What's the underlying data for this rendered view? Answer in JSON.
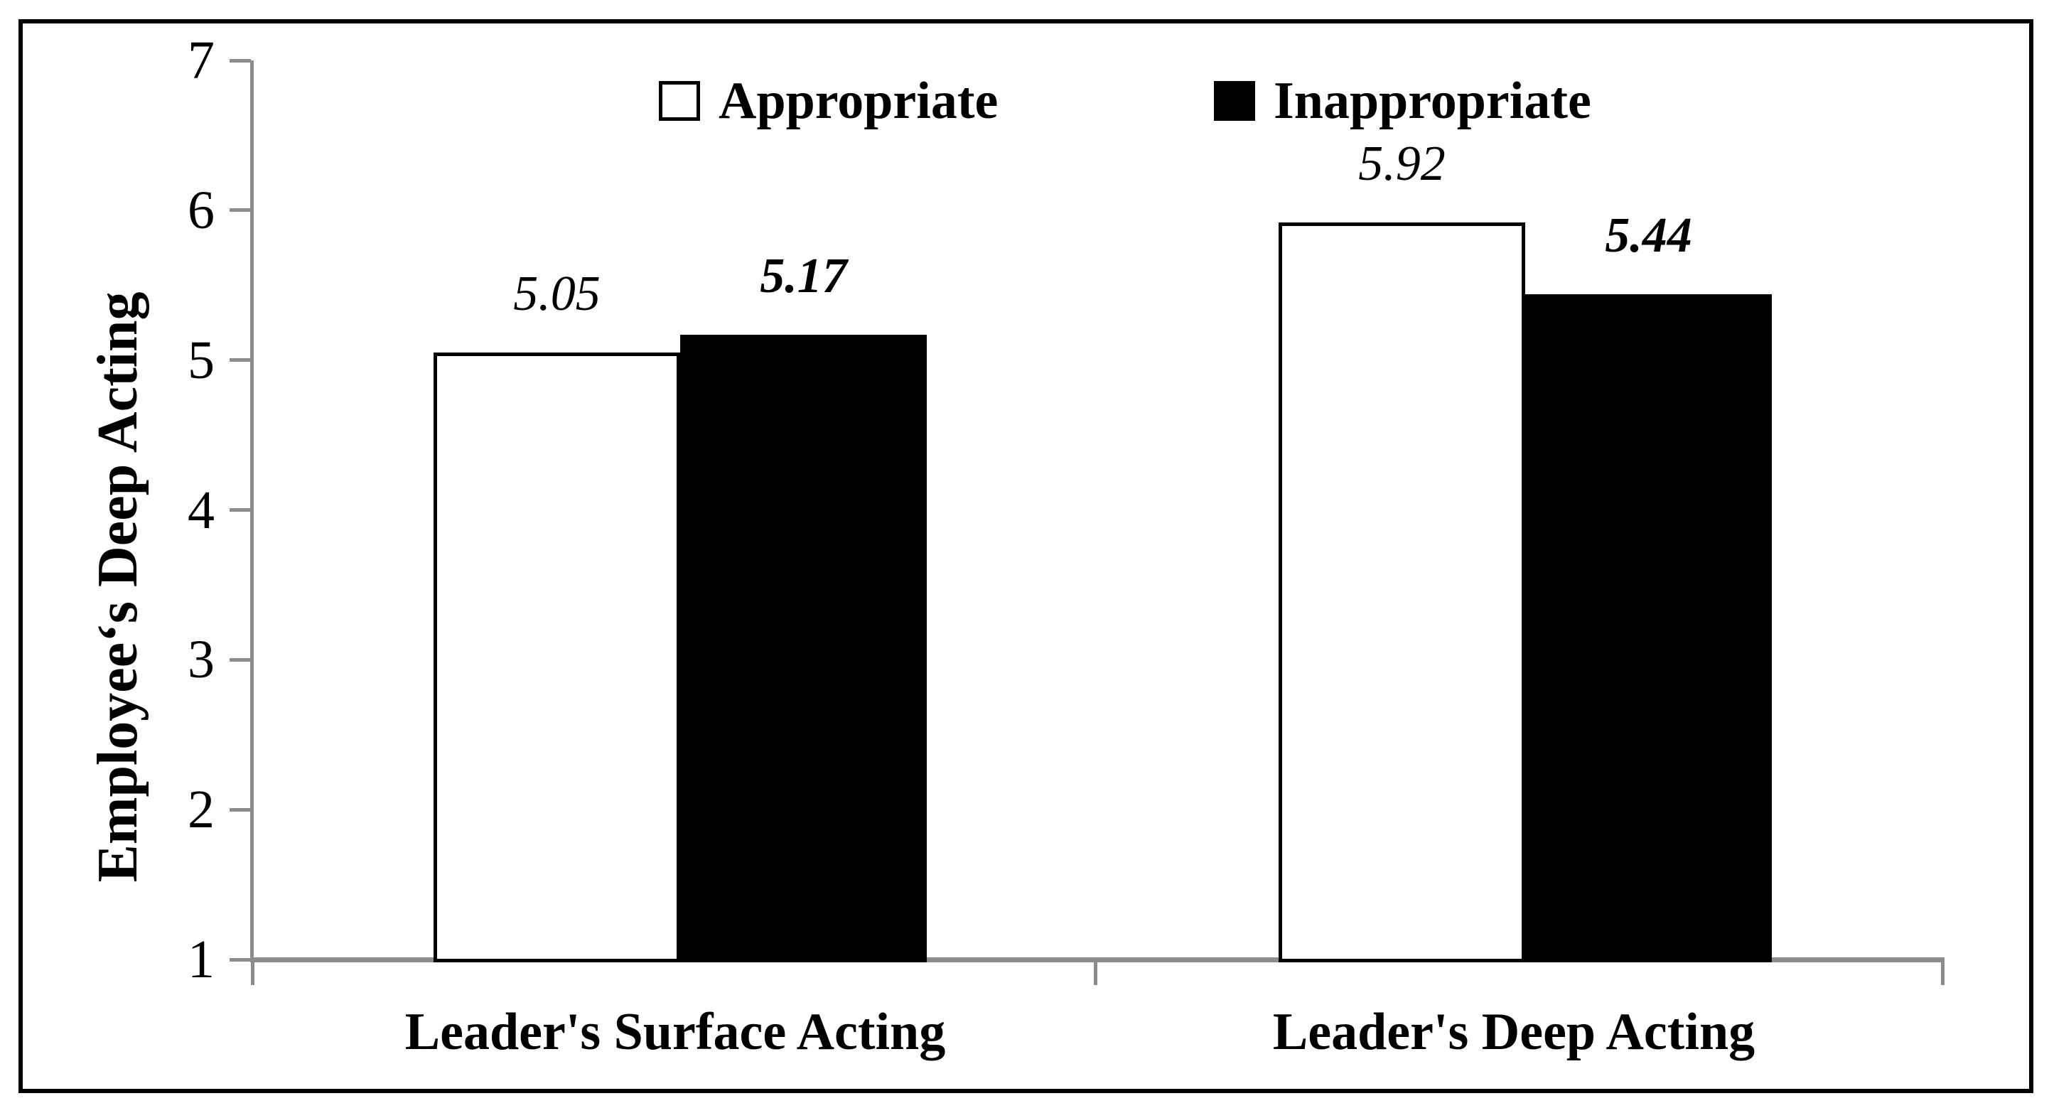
{
  "chart_data": {
    "type": "bar",
    "title": "",
    "ylabel": "Employee‘s Deep Acting",
    "xlabel": "",
    "categories": [
      "Leader's Surface Acting",
      "Leader's Deep Acting"
    ],
    "series": [
      {
        "name": "Appropriate",
        "fill": "#ffffff",
        "values": [
          5.05,
          5.92
        ],
        "value_labels": [
          "5.05",
          "5.92"
        ]
      },
      {
        "name": "Inappropriate",
        "fill": "#000000",
        "values": [
          5.17,
          5.44
        ],
        "value_labels": [
          "5.17",
          "5.44"
        ]
      }
    ],
    "ylim": [
      1,
      7
    ],
    "yticks": [
      1,
      2,
      3,
      4,
      5,
      6,
      7
    ],
    "grid": false,
    "legend_position": "top-center"
  },
  "colors": {
    "axis": "#8c8c8c",
    "border": "#000000",
    "bar_appropriate": "#ffffff",
    "bar_inappropriate": "#000000"
  }
}
